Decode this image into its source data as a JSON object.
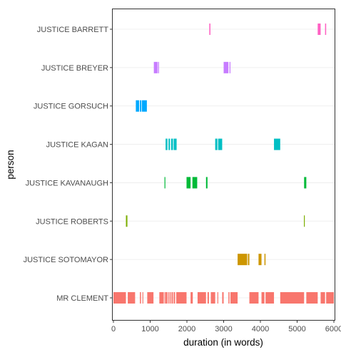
{
  "chart_data": {
    "type": "timeline",
    "xlabel": "duration (in words)",
    "ylabel": "person",
    "xlim": [
      0,
      6000
    ],
    "x_ticks": [
      0,
      1000,
      2000,
      3000,
      4000,
      5000,
      6000
    ],
    "grid": "horizontal major lines",
    "legend": "none",
    "categories": [
      "JUSTICE BARRETT",
      "JUSTICE BREYER",
      "JUSTICE GORSUCH",
      "JUSTICE KAGAN",
      "JUSTICE KAVANAUGH",
      "JUSTICE ROBERTS",
      "JUSTICE SOTOMAYOR",
      "MR CLEMENT"
    ],
    "series": [
      {
        "category": "JUSTICE BARRETT",
        "color": "#FF61C3",
        "segments": [
          [
            2610,
            2640
          ],
          [
            5560,
            5640
          ],
          [
            5760,
            5790
          ]
        ]
      },
      {
        "category": "JUSTICE BREYER",
        "color": "#C77CFF",
        "segments": [
          [
            1100,
            1200
          ],
          [
            1215,
            1240
          ],
          [
            3000,
            3130
          ],
          [
            3160,
            3185
          ]
        ]
      },
      {
        "category": "JUSTICE GORSUCH",
        "color": "#00A9FF",
        "segments": [
          [
            610,
            700
          ],
          [
            720,
            760
          ],
          [
            775,
            910
          ]
        ]
      },
      {
        "category": "JUSTICE KAGAN",
        "color": "#00BFC4",
        "segments": [
          [
            1420,
            1470
          ],
          [
            1500,
            1540
          ],
          [
            1570,
            1620
          ],
          [
            1640,
            1720
          ],
          [
            2770,
            2830
          ],
          [
            2850,
            2960
          ],
          [
            4370,
            4540
          ]
        ]
      },
      {
        "category": "JUSTICE KAVANAUGH",
        "color": "#00BA38",
        "segments": [
          [
            1390,
            1410
          ],
          [
            1990,
            2100
          ],
          [
            2150,
            2280
          ],
          [
            2520,
            2560
          ],
          [
            5190,
            5250
          ]
        ]
      },
      {
        "category": "JUSTICE ROBERTS",
        "color": "#7CAE00",
        "segments": [
          [
            340,
            380
          ],
          [
            5185,
            5205
          ]
        ]
      },
      {
        "category": "JUSTICE SOTOMAYOR",
        "color": "#CD9600",
        "segments": [
          [
            3380,
            3640
          ],
          [
            3660,
            3700
          ],
          [
            3950,
            4030
          ],
          [
            4110,
            4140
          ]
        ]
      },
      {
        "category": "MR CLEMENT",
        "color": "#F8766D",
        "segments": [
          [
            0,
            340
          ],
          [
            390,
            590
          ],
          [
            720,
            750
          ],
          [
            790,
            810
          ],
          [
            920,
            1090
          ],
          [
            1250,
            1370
          ],
          [
            1390,
            1400
          ],
          [
            1420,
            1470
          ],
          [
            1490,
            1510
          ],
          [
            1530,
            1560
          ],
          [
            1580,
            1620
          ],
          [
            1640,
            1680
          ],
          [
            1710,
            1990
          ],
          [
            2100,
            2160
          ],
          [
            2290,
            2520
          ],
          [
            2560,
            2600
          ],
          [
            2650,
            2770
          ],
          [
            2830,
            2850
          ],
          [
            2960,
            3000
          ],
          [
            3130,
            3160
          ],
          [
            3185,
            3380
          ],
          [
            3700,
            3950
          ],
          [
            4030,
            4110
          ],
          [
            4140,
            4370
          ],
          [
            4540,
            5190
          ],
          [
            5250,
            5560
          ],
          [
            5640,
            5760
          ],
          [
            5790,
            6000
          ]
        ]
      }
    ]
  }
}
